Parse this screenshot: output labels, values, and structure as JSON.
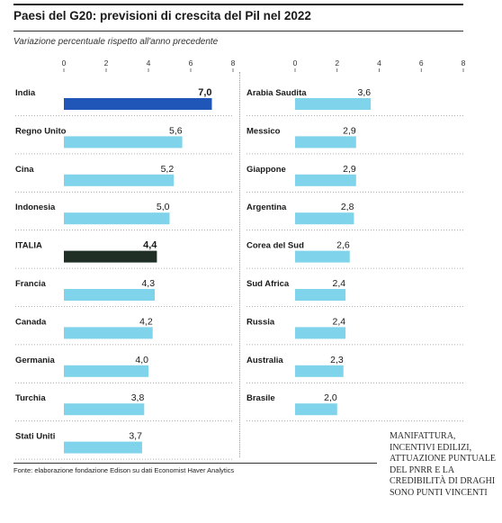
{
  "header": {
    "title": "Paesi del G20: previsioni di crescita del Pil nel 2022",
    "subtitle": "Variazione percentuale rispetto all'anno precedente"
  },
  "footer": {
    "source": "Fonte: elaborazione fondazione Edison su dati Economist Haver Analytics"
  },
  "side_note": {
    "text": "Manifattura, incentivi edilizi, attuazione puntuale del PNRR e la credibilità di Draghi sono punti vincenti"
  },
  "colors": {
    "bar_default": "#7fd3ea",
    "bar_highlight_india": "#1f56b8",
    "bar_highlight_italia": "#1f2f25",
    "text": "#1a1a1a"
  },
  "chart_data": [
    {
      "type": "bar",
      "orientation": "horizontal",
      "categories": [
        "India",
        "Regno Unito",
        "Cina",
        "Indonesia",
        "ITALIA",
        "Francia",
        "Canada",
        "Germania",
        "Turchia",
        "Stati Uniti"
      ],
      "values": [
        7.0,
        5.6,
        5.2,
        5.0,
        4.4,
        4.3,
        4.2,
        4.0,
        3.8,
        3.7
      ],
      "labels": [
        "7,0",
        "5,6",
        "5,2",
        "5,0",
        "4,4",
        "4,3",
        "4,2",
        "4,0",
        "3,8",
        "3,7"
      ],
      "highlight": [
        "India",
        "ITALIA"
      ],
      "xlim": [
        0,
        8
      ],
      "xticks": [
        "0",
        "2",
        "4",
        "6",
        "8"
      ]
    },
    {
      "type": "bar",
      "orientation": "horizontal",
      "categories": [
        "Arabia Saudita",
        "Messico",
        "Giappone",
        "Argentina",
        "Corea del Sud",
        "Sud Africa",
        "Russia",
        "Australia",
        "Brasile"
      ],
      "values": [
        3.6,
        2.9,
        2.9,
        2.8,
        2.6,
        2.4,
        2.4,
        2.3,
        2.0
      ],
      "labels": [
        "3,6",
        "2,9",
        "2,9",
        "2,8",
        "2,6",
        "2,4",
        "2,4",
        "2,3",
        "2,0"
      ],
      "xlim": [
        0,
        8
      ],
      "xticks": [
        "0",
        "2",
        "4",
        "6",
        "8"
      ]
    }
  ]
}
